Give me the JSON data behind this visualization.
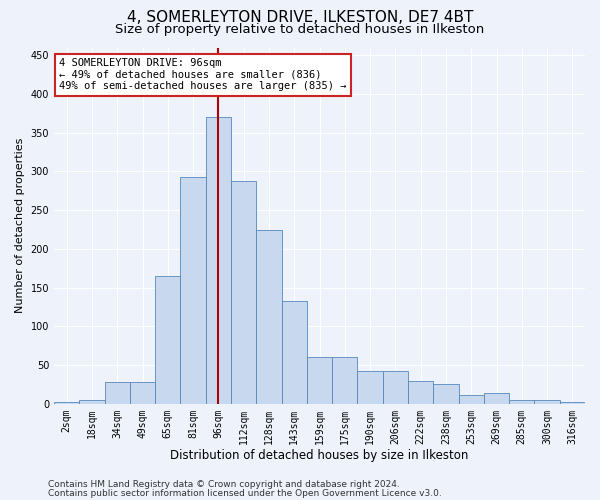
{
  "title": "4, SOMERLEYTON DRIVE, ILKESTON, DE7 4BT",
  "subtitle": "Size of property relative to detached houses in Ilkeston",
  "xlabel": "Distribution of detached houses by size in Ilkeston",
  "ylabel": "Number of detached properties",
  "categories": [
    "2sqm",
    "18sqm",
    "34sqm",
    "49sqm",
    "65sqm",
    "81sqm",
    "96sqm",
    "112sqm",
    "128sqm",
    "143sqm",
    "159sqm",
    "175sqm",
    "190sqm",
    "206sqm",
    "222sqm",
    "238sqm",
    "253sqm",
    "269sqm",
    "285sqm",
    "300sqm",
    "316sqm"
  ],
  "values": [
    2,
    5,
    28,
    28,
    165,
    293,
    370,
    288,
    225,
    133,
    60,
    60,
    42,
    42,
    30,
    25,
    12,
    14,
    5,
    5,
    2
  ],
  "bar_color": "#c8d9ef",
  "bar_edge_color": "#5588bb",
  "vline_index": 6,
  "vline_color": "#aa0000",
  "annotation_text": "4 SOMERLEYTON DRIVE: 96sqm\n← 49% of detached houses are smaller (836)\n49% of semi-detached houses are larger (835) →",
  "annotation_box_facecolor": "#ffffff",
  "annotation_box_edgecolor": "#cc2222",
  "ylim": [
    0,
    460
  ],
  "yticks": [
    0,
    50,
    100,
    150,
    200,
    250,
    300,
    350,
    400,
    450
  ],
  "footer1": "Contains HM Land Registry data © Crown copyright and database right 2024.",
  "footer2": "Contains public sector information licensed under the Open Government Licence v3.0.",
  "bg_color": "#eef2fb",
  "grid_color": "#ffffff",
  "title_fontsize": 11,
  "subtitle_fontsize": 9.5,
  "xlabel_fontsize": 8.5,
  "ylabel_fontsize": 8,
  "tick_fontsize": 7,
  "footer_fontsize": 6.5,
  "annot_fontsize": 7.5
}
